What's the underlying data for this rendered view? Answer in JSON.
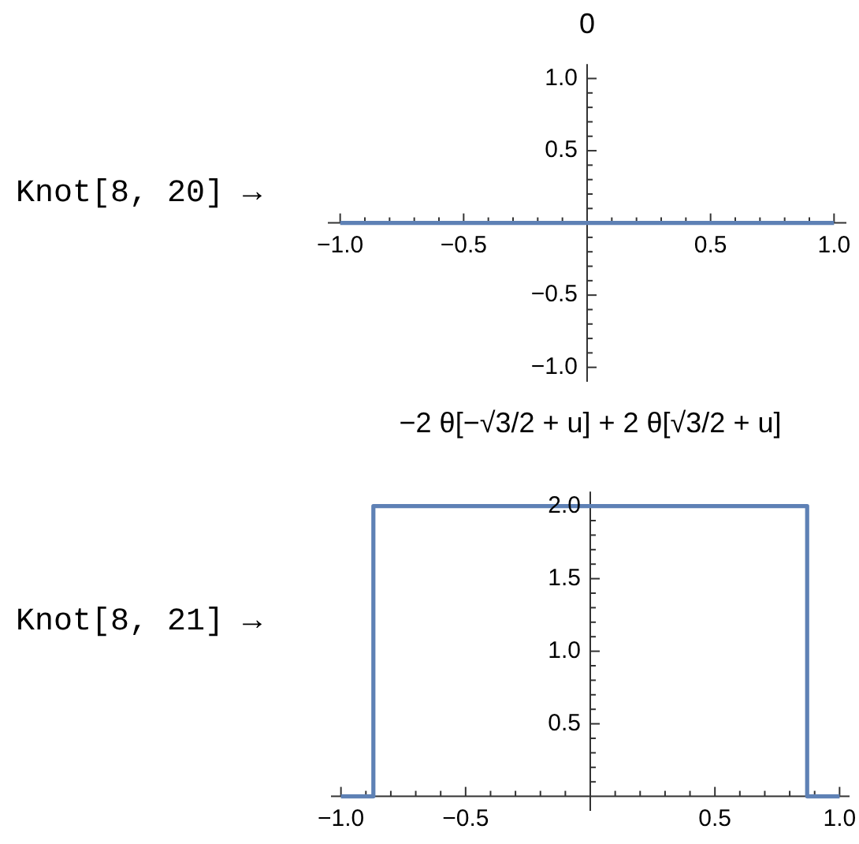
{
  "chart_data": [
    {
      "type": "line",
      "title": "0",
      "annotations": [
        "Knot[8, 20] →"
      ],
      "x": [
        -1,
        1
      ],
      "values": [
        0,
        0
      ],
      "color": "#5e81b5",
      "xlim": [
        -1.05,
        1.05
      ],
      "ylim": [
        -1.1,
        1.1
      ],
      "xticks": [
        {
          "value": -1,
          "label": "−1.0"
        },
        {
          "value": -0.9,
          "label": null
        },
        {
          "value": -0.8,
          "label": null
        },
        {
          "value": -0.7,
          "label": null
        },
        {
          "value": -0.6,
          "label": null
        },
        {
          "value": -0.5,
          "label": "−0.5"
        },
        {
          "value": -0.4,
          "label": null
        },
        {
          "value": -0.3,
          "label": null
        },
        {
          "value": -0.2,
          "label": null
        },
        {
          "value": -0.1,
          "label": null
        },
        {
          "value": 0.1,
          "label": null
        },
        {
          "value": 0.2,
          "label": null
        },
        {
          "value": 0.3,
          "label": null
        },
        {
          "value": 0.4,
          "label": null
        },
        {
          "value": 0.5,
          "label": "0.5"
        },
        {
          "value": 0.6,
          "label": null
        },
        {
          "value": 0.7,
          "label": null
        },
        {
          "value": 0.8,
          "label": null
        },
        {
          "value": 0.9,
          "label": null
        },
        {
          "value": 1,
          "label": "1.0"
        }
      ],
      "yticks": [
        {
          "value": -1,
          "label": "−1.0"
        },
        {
          "value": -0.9,
          "label": null
        },
        {
          "value": -0.8,
          "label": null
        },
        {
          "value": -0.7,
          "label": null
        },
        {
          "value": -0.6,
          "label": null
        },
        {
          "value": -0.5,
          "label": "−0.5"
        },
        {
          "value": -0.4,
          "label": null
        },
        {
          "value": -0.3,
          "label": null
        },
        {
          "value": -0.2,
          "label": null
        },
        {
          "value": -0.1,
          "label": null
        },
        {
          "value": 0.1,
          "label": null
        },
        {
          "value": 0.2,
          "label": null
        },
        {
          "value": 0.3,
          "label": null
        },
        {
          "value": 0.4,
          "label": null
        },
        {
          "value": 0.5,
          "label": "0.5"
        },
        {
          "value": 0.6,
          "label": null
        },
        {
          "value": 0.7,
          "label": null
        },
        {
          "value": 0.8,
          "label": null
        },
        {
          "value": 0.9,
          "label": null
        },
        {
          "value": 1,
          "label": "1.0"
        }
      ]
    },
    {
      "type": "line",
      "title": "−2 θ[−√3/2 + u] + 2 θ[√3/2 + u]",
      "annotations": [
        "Knot[8, 21] →"
      ],
      "x": [
        -1,
        -0.87,
        -0.87,
        0.87,
        0.87,
        1
      ],
      "values": [
        0,
        0,
        2,
        2,
        0,
        0
      ],
      "color": "#5e81b5",
      "xlim": [
        -1.04,
        1.04
      ],
      "ylim": [
        -0.1,
        2.1
      ],
      "xticks": [
        {
          "value": -1,
          "label": "−1.0"
        },
        {
          "value": -0.9,
          "label": null
        },
        {
          "value": -0.8,
          "label": null
        },
        {
          "value": -0.7,
          "label": null
        },
        {
          "value": -0.6,
          "label": null
        },
        {
          "value": -0.5,
          "label": "−0.5"
        },
        {
          "value": -0.4,
          "label": null
        },
        {
          "value": -0.3,
          "label": null
        },
        {
          "value": -0.2,
          "label": null
        },
        {
          "value": -0.1,
          "label": null
        },
        {
          "value": 0.1,
          "label": null
        },
        {
          "value": 0.2,
          "label": null
        },
        {
          "value": 0.3,
          "label": null
        },
        {
          "value": 0.4,
          "label": null
        },
        {
          "value": 0.5,
          "label": "0.5"
        },
        {
          "value": 0.6,
          "label": null
        },
        {
          "value": 0.7,
          "label": null
        },
        {
          "value": 0.8,
          "label": null
        },
        {
          "value": 0.9,
          "label": null
        },
        {
          "value": 1,
          "label": "1.0"
        }
      ],
      "yticks": [
        {
          "value": 0.1,
          "label": null
        },
        {
          "value": 0.2,
          "label": null
        },
        {
          "value": 0.3,
          "label": null
        },
        {
          "value": 0.4,
          "label": null
        },
        {
          "value": 0.5,
          "label": "0.5"
        },
        {
          "value": 0.6,
          "label": null
        },
        {
          "value": 0.7,
          "label": null
        },
        {
          "value": 0.8,
          "label": null
        },
        {
          "value": 0.9,
          "label": null
        },
        {
          "value": 1,
          "label": "1.0"
        },
        {
          "value": 1.1,
          "label": null
        },
        {
          "value": 1.2,
          "label": null
        },
        {
          "value": 1.3,
          "label": null
        },
        {
          "value": 1.4,
          "label": null
        },
        {
          "value": 1.5,
          "label": "1.5"
        },
        {
          "value": 1.6,
          "label": null
        },
        {
          "value": 1.7,
          "label": null
        },
        {
          "value": 1.8,
          "label": null
        },
        {
          "value": 1.9,
          "label": null
        },
        {
          "value": 2,
          "label": "2.0"
        }
      ]
    }
  ]
}
